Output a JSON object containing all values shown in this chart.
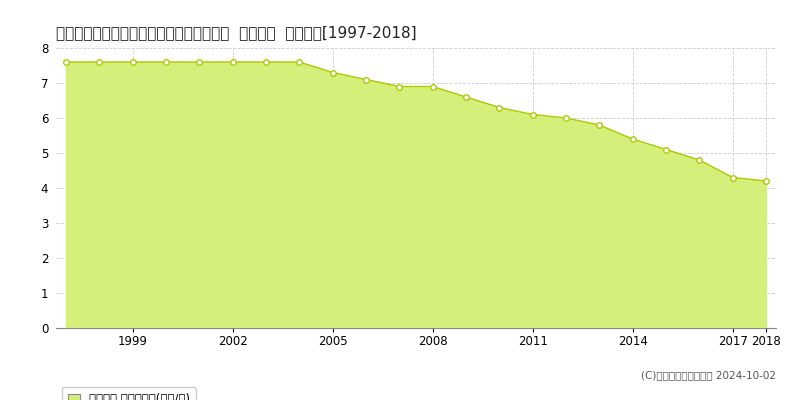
{
  "title": "北海道天塩郡幌延町２条北１丁目１１番外  基準地価  地価推移[1997-2018]",
  "years": [
    1997,
    1998,
    1999,
    2000,
    2001,
    2002,
    2003,
    2004,
    2005,
    2006,
    2007,
    2008,
    2009,
    2010,
    2011,
    2012,
    2013,
    2014,
    2015,
    2016,
    2017,
    2018
  ],
  "values": [
    7.6,
    7.6,
    7.6,
    7.6,
    7.6,
    7.6,
    7.6,
    7.6,
    7.3,
    7.1,
    6.9,
    6.9,
    6.6,
    6.3,
    6.1,
    6.0,
    5.8,
    5.4,
    5.1,
    4.8,
    4.3,
    4.2
  ],
  "line_color": "#aacc00",
  "fill_color": "#d4f07a",
  "marker_face": "#ffffff",
  "marker_edge": "#aacc00",
  "bg_color": "#ffffff",
  "grid_color": "#cccccc",
  "ylim": [
    0,
    8
  ],
  "yticks": [
    0,
    1,
    2,
    3,
    4,
    5,
    6,
    7,
    8
  ],
  "xtick_years": [
    1999,
    2002,
    2005,
    2008,
    2011,
    2014,
    2017,
    2018
  ],
  "legend_label": "基準地価 平均坪単価(万円/坪)",
  "copyright": "(C)土地価格ドットコム 2024-10-02",
  "title_fontsize": 11,
  "axis_fontsize": 8.5,
  "legend_fontsize": 8.5,
  "copyright_fontsize": 7.5
}
